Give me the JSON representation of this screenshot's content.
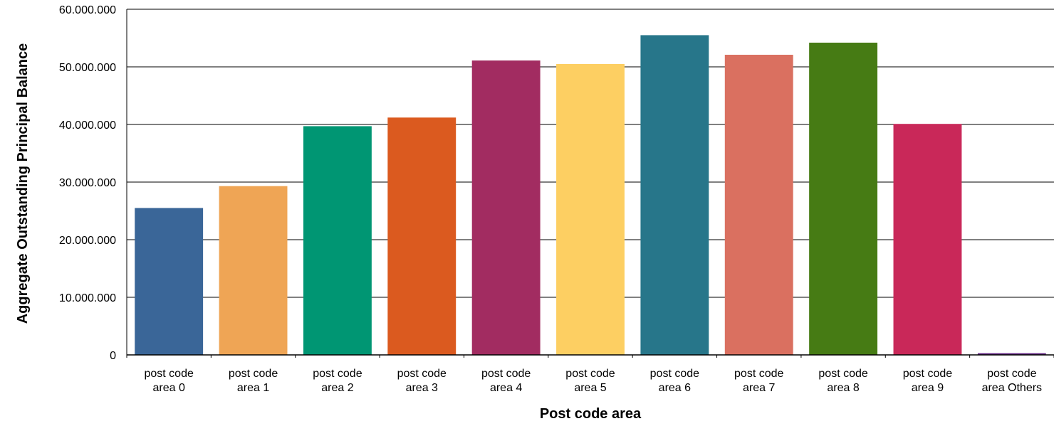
{
  "chart_data": {
    "type": "bar",
    "title": "",
    "xlabel": "Post code area",
    "ylabel": "Aggregate Outstanding Principal Balance",
    "ylim": [
      0,
      60000000
    ],
    "yticks": [
      0,
      10000000,
      20000000,
      30000000,
      40000000,
      50000000,
      60000000
    ],
    "ytick_labels": [
      "0",
      "10.000.000",
      "20.000.000",
      "30.000.000",
      "40.000.000",
      "50.000.000",
      "60.000.000"
    ],
    "grid": true,
    "legend": "none",
    "categories": [
      "post code area 0",
      "post code area 1",
      "post code area 2",
      "post code area 3",
      "post code area 4",
      "post code area 5",
      "post code area 6",
      "post code area 7",
      "post code area 8",
      "post code area 9",
      "post code area Others"
    ],
    "category_lines": [
      [
        "post code",
        "area 0"
      ],
      [
        "post code",
        "area 1"
      ],
      [
        "post code",
        "area 2"
      ],
      [
        "post code",
        "area 3"
      ],
      [
        "post code",
        "area 4"
      ],
      [
        "post code",
        "area 5"
      ],
      [
        "post code",
        "area 6"
      ],
      [
        "post code",
        "area 7"
      ],
      [
        "post code",
        "area 8"
      ],
      [
        "post code",
        "area 9"
      ],
      [
        "post code",
        "area Others"
      ]
    ],
    "values": [
      25500000,
      29300000,
      39700000,
      41200000,
      51100000,
      50500000,
      55500000,
      52100000,
      54200000,
      40100000,
      300000
    ],
    "colors": [
      "#3a6698",
      "#efa555",
      "#009673",
      "#db5a1f",
      "#a22c61",
      "#fdcf62",
      "#27768a",
      "#da7060",
      "#467b14",
      "#c92859",
      "#6a2d8a"
    ]
  }
}
